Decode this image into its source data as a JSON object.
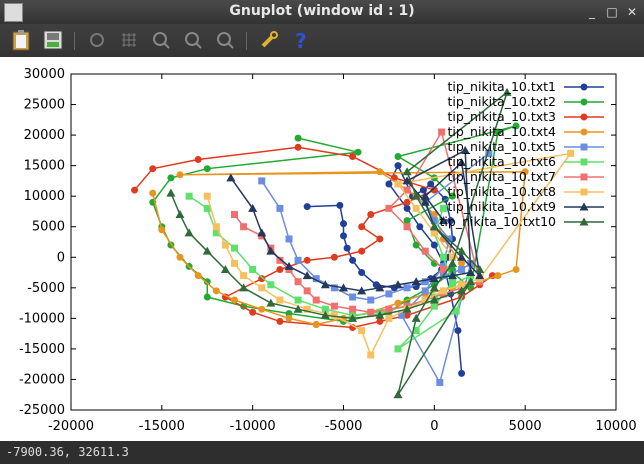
{
  "window": {
    "title": "Gnuplot (window id : 1)"
  },
  "toolbar": {
    "icons": [
      "clipboard-icon",
      "export-icon",
      "replot-icon",
      "grid-icon",
      "zoom-prev-icon",
      "zoom-next-icon",
      "unzoom-icon",
      "settings-icon",
      "help-icon"
    ],
    "help_glyph": "?"
  },
  "status": {
    "coords": "-7900.36,  32611.3"
  },
  "chart_data": {
    "type": "line",
    "xlim": [
      -20000,
      10000
    ],
    "ylim": [
      -25000,
      30000
    ],
    "xticks": [
      "-20000",
      "-15000",
      "-10000",
      "-5000",
      "0",
      "5000",
      "10000"
    ],
    "yticks": [
      "-25000",
      "-20000",
      "-15000",
      "-10000",
      "-5000",
      "0",
      "5000",
      "10000",
      "15000",
      "20000",
      "25000",
      "30000"
    ],
    "legend_position": "top-right",
    "series": [
      {
        "name": "tip_nikita_10.txt1",
        "color": "#1f3f99",
        "marker": "circle",
        "points": [
          [
            -7000,
            8300
          ],
          [
            -5200,
            8500
          ],
          [
            -5000,
            5500
          ],
          [
            -5000,
            3500
          ],
          [
            -4800,
            1500
          ],
          [
            -4500,
            -500
          ],
          [
            -4000,
            -2500
          ],
          [
            -3200,
            -4500
          ],
          [
            -2200,
            -5000
          ],
          [
            -1000,
            -4800
          ],
          [
            -200,
            -3500
          ],
          [
            400,
            -2000
          ],
          [
            800,
            0
          ],
          [
            1000,
            3000
          ],
          [
            900,
            6000
          ],
          [
            600,
            9500
          ],
          [
            -200,
            12000
          ],
          [
            -600,
            11000
          ],
          [
            -1200,
            10000
          ],
          [
            -2000,
            15000
          ],
          [
            -2500,
            12000
          ],
          [
            -1500,
            8000
          ],
          [
            -800,
            5000
          ],
          [
            0,
            2000
          ],
          [
            500,
            -1000
          ],
          [
            900,
            -6000
          ],
          [
            1300,
            -12000
          ],
          [
            1500,
            -19000
          ]
        ]
      },
      {
        "name": "tip_nikita_10.txt2",
        "color": "#22aa33",
        "marker": "circle",
        "points": [
          [
            -7500,
            19500
          ],
          [
            -4200,
            17200
          ],
          [
            -12500,
            14500
          ],
          [
            -14500,
            13000
          ],
          [
            -15500,
            9000
          ],
          [
            -15000,
            5000
          ],
          [
            -14500,
            2000
          ],
          [
            -13500,
            -1500
          ],
          [
            -12500,
            -4000
          ],
          [
            -12500,
            -6500
          ],
          [
            -10500,
            -8000
          ],
          [
            -8000,
            -9200
          ],
          [
            -5000,
            -10500
          ],
          [
            -2500,
            -9000
          ],
          [
            -1500,
            -7000
          ],
          [
            0,
            -4500
          ],
          [
            1000,
            -2500
          ],
          [
            2000,
            -5000
          ],
          [
            3500,
            20500
          ],
          [
            4500,
            21500
          ],
          [
            -2000,
            16500
          ],
          [
            0,
            13000
          ],
          [
            1000,
            10000
          ],
          [
            -1500,
            6000
          ],
          [
            -1000,
            2000
          ],
          [
            0,
            -1000
          ],
          [
            1000,
            -2000
          ]
        ]
      },
      {
        "name": "tip_nikita_10.txt3",
        "color": "#e03a1f",
        "marker": "circle",
        "points": [
          [
            -16500,
            11000
          ],
          [
            -15500,
            14500
          ],
          [
            -13000,
            16000
          ],
          [
            -7500,
            18000
          ],
          [
            -4500,
            16500
          ],
          [
            -2200,
            13000
          ],
          [
            0,
            11000
          ],
          [
            -1500,
            9000
          ],
          [
            -3500,
            7000
          ],
          [
            -4000,
            5000
          ],
          [
            -3000,
            3000
          ],
          [
            -4000,
            1000
          ],
          [
            -5500,
            0
          ],
          [
            -7000,
            -500
          ],
          [
            -8500,
            -2000
          ],
          [
            -9500,
            -3500
          ],
          [
            -11500,
            -6500
          ],
          [
            -10000,
            -9000
          ],
          [
            -8500,
            -10500
          ],
          [
            -6500,
            -11000
          ],
          [
            -4500,
            -11500
          ],
          [
            -3000,
            -10500
          ],
          [
            -1500,
            -9500
          ],
          [
            0,
            -8000
          ],
          [
            1500,
            -6500
          ],
          [
            2500,
            -4500
          ],
          [
            3200,
            -3000
          ]
        ]
      },
      {
        "name": "tip_nikita_10.txt4",
        "color": "#e8951f",
        "marker": "circle",
        "points": [
          [
            -15500,
            10500
          ],
          [
            -15000,
            4500
          ],
          [
            -14000,
            0
          ],
          [
            -13000,
            -3000
          ],
          [
            -12000,
            -5500
          ],
          [
            -11000,
            -7000
          ],
          [
            -9500,
            -8500
          ],
          [
            -8000,
            -10000
          ],
          [
            -6500,
            -11000
          ],
          [
            -5000,
            -10000
          ],
          [
            -3500,
            -9000
          ],
          [
            -2000,
            -7500
          ],
          [
            -500,
            -6000
          ],
          [
            1000,
            -5000
          ],
          [
            2500,
            -4000
          ],
          [
            3500,
            -3000
          ],
          [
            4500,
            -2000
          ],
          [
            5000,
            14000
          ],
          [
            -14000,
            13500
          ],
          [
            -3000,
            14000
          ],
          [
            -1000,
            10000
          ],
          [
            0,
            7000
          ],
          [
            500,
            3000
          ],
          [
            1500,
            -1000
          ]
        ]
      },
      {
        "name": "tip_nikita_10.txt5",
        "color": "#6b8ee0",
        "marker": "square",
        "points": [
          [
            -9500,
            12500
          ],
          [
            -8500,
            8000
          ],
          [
            -8000,
            3000
          ],
          [
            -7500,
            -500
          ],
          [
            -6500,
            -3500
          ],
          [
            -5500,
            -5000
          ],
          [
            -4500,
            -6500
          ],
          [
            -3500,
            -7000
          ],
          [
            -2500,
            -6000
          ],
          [
            -1500,
            -5000
          ],
          [
            -500,
            -4000
          ],
          [
            500,
            -3000
          ],
          [
            1500,
            -2000
          ],
          [
            2000,
            -1000
          ],
          [
            300,
            -20500
          ],
          [
            -1800,
            -9500
          ],
          [
            -500,
            -5500
          ],
          [
            500,
            -1500
          ],
          [
            800,
            3000
          ],
          [
            0,
            6000
          ],
          [
            -500,
            9000
          ],
          [
            3000,
            17000
          ]
        ]
      },
      {
        "name": "tip_nikita_10.txt6",
        "color": "#5ee06b",
        "marker": "square",
        "points": [
          [
            -13500,
            10000
          ],
          [
            -12500,
            8000
          ],
          [
            -12000,
            4000
          ],
          [
            -11000,
            1500
          ],
          [
            -10000,
            -2000
          ],
          [
            -9000,
            -4500
          ],
          [
            -7500,
            -7000
          ],
          [
            -6000,
            -8500
          ],
          [
            -4500,
            -9500
          ],
          [
            -3000,
            -9000
          ],
          [
            -1500,
            -8000
          ],
          [
            0,
            -6500
          ],
          [
            1000,
            -4500
          ],
          [
            2000,
            -3000
          ],
          [
            1200,
            -8800
          ],
          [
            -2000,
            -15000
          ],
          [
            -1000,
            -12000
          ],
          [
            0,
            -8000
          ],
          [
            1000,
            -4000
          ],
          [
            500,
            0
          ],
          [
            0,
            4000
          ],
          [
            500,
            8000
          ]
        ]
      },
      {
        "name": "tip_nikita_10.txt7",
        "color": "#f07070",
        "marker": "square",
        "points": [
          [
            -11000,
            7000
          ],
          [
            -10500,
            5000
          ],
          [
            -9500,
            3500
          ],
          [
            -9000,
            1500
          ],
          [
            -8500,
            -500
          ],
          [
            -8000,
            -2000
          ],
          [
            -7500,
            -4000
          ],
          [
            -7000,
            -5500
          ],
          [
            -6500,
            -7000
          ],
          [
            -5500,
            -8000
          ],
          [
            -4500,
            -8500
          ],
          [
            -3500,
            -9000
          ],
          [
            -2500,
            -8500
          ],
          [
            -1500,
            -8000
          ],
          [
            -500,
            -7000
          ],
          [
            500,
            -6000
          ],
          [
            1500,
            -5000
          ],
          [
            2500,
            -4000
          ],
          [
            400,
            20500
          ],
          [
            -1500,
            11000
          ],
          [
            -2500,
            8000
          ],
          [
            -1500,
            5000
          ],
          [
            -500,
            1000
          ],
          [
            500,
            -2000
          ]
        ]
      },
      {
        "name": "tip_nikita_10.txt8",
        "color": "#f6c060",
        "marker": "square",
        "points": [
          [
            -12500,
            10000
          ],
          [
            -12000,
            5000
          ],
          [
            -11500,
            2000
          ],
          [
            -11000,
            -1000
          ],
          [
            -10500,
            -3000
          ],
          [
            -9500,
            -5000
          ],
          [
            -8500,
            -7000
          ],
          [
            -7000,
            -8500
          ],
          [
            -5500,
            -9500
          ],
          [
            -4000,
            -12000
          ],
          [
            -3500,
            -16000
          ],
          [
            -2500,
            -10000
          ],
          [
            -1500,
            -8500
          ],
          [
            -500,
            -7000
          ],
          [
            500,
            -5500
          ],
          [
            1500,
            -4500
          ],
          [
            2500,
            -3500
          ],
          [
            7500,
            17000
          ],
          [
            -2000,
            12000
          ],
          [
            -1000,
            8000
          ],
          [
            0,
            4000
          ],
          [
            1000,
            0
          ]
        ]
      },
      {
        "name": "tip_nikita_10.txt9",
        "color": "#23385c",
        "marker": "triangle",
        "points": [
          [
            -11200,
            13000
          ],
          [
            -10000,
            8000
          ],
          [
            -9500,
            4000
          ],
          [
            -9000,
            1000
          ],
          [
            -8000,
            -1500
          ],
          [
            -7000,
            -3000
          ],
          [
            -6000,
            -4500
          ],
          [
            -5000,
            -5000
          ],
          [
            -4000,
            -5500
          ],
          [
            -3000,
            -5000
          ],
          [
            -2000,
            -4500
          ],
          [
            -1000,
            -4000
          ],
          [
            0,
            -3500
          ],
          [
            1000,
            -3000
          ],
          [
            2000,
            -2500
          ],
          [
            1700,
            17500
          ],
          [
            -1500,
            12500
          ],
          [
            -500,
            9000
          ],
          [
            0,
            5000
          ],
          [
            1500,
            0
          ],
          [
            2500,
            -3000
          ],
          [
            1500,
            15500
          ],
          [
            -500,
            10000
          ],
          [
            500,
            6000
          ]
        ]
      },
      {
        "name": "tip_nikita_10.txt10",
        "color": "#2f6a3a",
        "marker": "triangle",
        "points": [
          [
            -14500,
            10500
          ],
          [
            -14000,
            7000
          ],
          [
            -13500,
            4000
          ],
          [
            -12500,
            1000
          ],
          [
            -11500,
            -2000
          ],
          [
            -10500,
            -5000
          ],
          [
            -9000,
            -7500
          ],
          [
            -7500,
            -8500
          ],
          [
            -6000,
            -9500
          ],
          [
            -4500,
            -10000
          ],
          [
            -3000,
            -9500
          ],
          [
            -1500,
            -8500
          ],
          [
            0,
            -7000
          ],
          [
            1500,
            -5500
          ],
          [
            2000,
            -4000
          ],
          [
            -2000,
            -22500
          ],
          [
            -1000,
            -10000
          ],
          [
            0,
            -5000
          ],
          [
            1000,
            -1000
          ],
          [
            4000,
            27000
          ],
          [
            -1500,
            14000
          ],
          [
            -1000,
            10000
          ],
          [
            0,
            5000
          ],
          [
            1500,
            1000
          ],
          [
            2500,
            -2000
          ]
        ]
      }
    ]
  }
}
